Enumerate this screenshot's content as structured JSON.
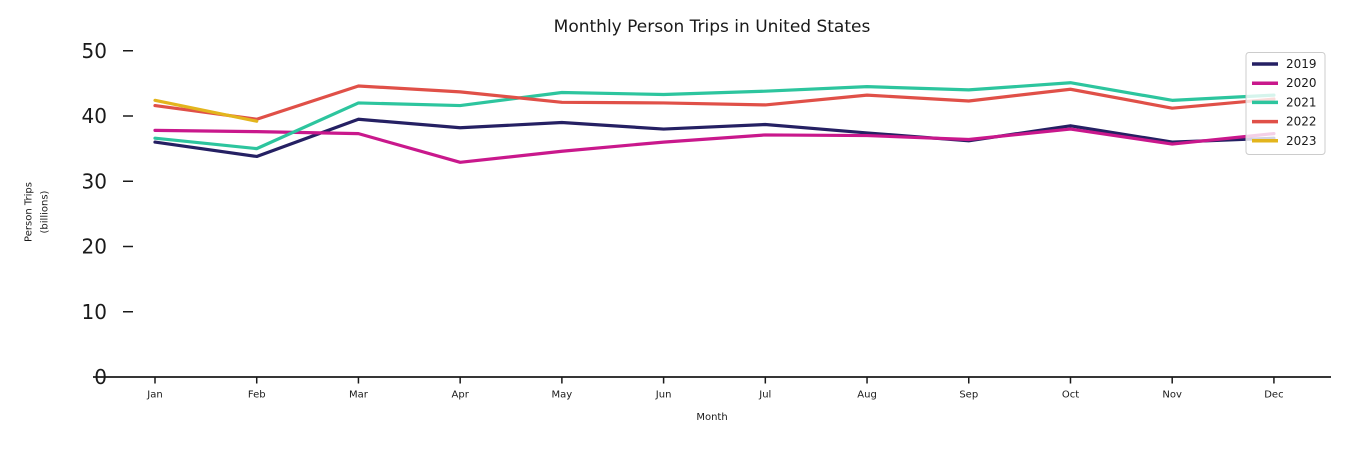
{
  "chart_data": {
    "type": "line",
    "title": "Monthly Person Trips in United States",
    "xlabel": "Month",
    "ylabel_line1": "Person Trips",
    "ylabel_line2": "(billions)",
    "categories": [
      "Jan",
      "Feb",
      "Mar",
      "Apr",
      "May",
      "Jun",
      "Jul",
      "Aug",
      "Sep",
      "Oct",
      "Nov",
      "Dec"
    ],
    "yticks": [
      0,
      10,
      20,
      30,
      40,
      50
    ],
    "ylim": [
      0,
      52
    ],
    "grid": false,
    "legend_position": "upper right",
    "axis_color": "#1a1a1a",
    "background": "#ffffff",
    "legend_border_color": "#cccccc",
    "series": [
      {
        "name": "2019",
        "color": "#252063",
        "values": [
          36.0,
          33.8,
          39.5,
          38.2,
          39.0,
          38.0,
          38.7,
          37.4,
          36.2,
          38.5,
          36.0,
          36.6
        ]
      },
      {
        "name": "2020",
        "color": "#c9188c",
        "values": [
          37.8,
          37.6,
          37.3,
          32.9,
          34.6,
          36.0,
          37.1,
          37.0,
          36.4,
          38.0,
          35.7,
          37.3
        ]
      },
      {
        "name": "2021",
        "color": "#2dc59e",
        "values": [
          36.6,
          35.0,
          42.0,
          41.6,
          43.6,
          43.3,
          43.8,
          44.5,
          44.0,
          45.1,
          42.4,
          43.2
        ]
      },
      {
        "name": "2022",
        "color": "#e05048",
        "values": [
          41.6,
          39.5,
          44.6,
          43.7,
          42.1,
          42.0,
          41.7,
          43.2,
          42.3,
          44.1,
          41.2,
          42.6
        ]
      },
      {
        "name": "2023",
        "color": "#e3b51d",
        "values": [
          42.4,
          39.2,
          null,
          null,
          null,
          null,
          null,
          null,
          null,
          null,
          null,
          null
        ]
      }
    ]
  }
}
